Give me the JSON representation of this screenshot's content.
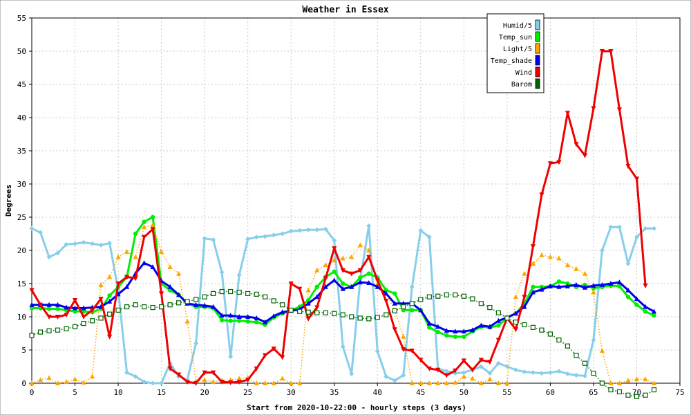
{
  "chart_data": {
    "type": "line",
    "title": "Weather in Essex",
    "xlabel": "Start from 2020-10-22:00 - hourly steps (3 days)",
    "ylabel": "Degrees",
    "xlim": [
      0,
      75
    ],
    "ylim": [
      0,
      55
    ],
    "xticks": [
      0,
      5,
      10,
      15,
      20,
      25,
      30,
      35,
      40,
      45,
      50,
      55,
      60,
      65,
      70,
      75
    ],
    "yticks": [
      0,
      5,
      10,
      15,
      20,
      25,
      30,
      35,
      40,
      45,
      50,
      55
    ],
    "grid": true,
    "legend_position": "top-right",
    "series": [
      {
        "name": "Humid/5",
        "color": "#87ceeb",
        "style": "solid",
        "marker": "diamond",
        "values": [
          23.3,
          22.7,
          19.0,
          19.6,
          20.9,
          21.0,
          21.2,
          21.0,
          20.8,
          21.1,
          14.0,
          1.6,
          1.0,
          0.2,
          0.0,
          0.0,
          3.0,
          1.0,
          0.5,
          6.0,
          21.8,
          21.6,
          16.7,
          4.0,
          16.3,
          21.7,
          22.0,
          22.1,
          22.3,
          22.5,
          22.9,
          23.0,
          23.1,
          23.1,
          23.2,
          21.5,
          5.5,
          1.4,
          15.6,
          23.7,
          4.8,
          1.0,
          0.4,
          1.2,
          14.5,
          23.0,
          22.0,
          2.2,
          1.8,
          1.5,
          1.6,
          2.0,
          2.5,
          1.5,
          3.0,
          2.5,
          2.0,
          1.7,
          1.6,
          1.5,
          1.6,
          1.8,
          1.4,
          1.2,
          1.1,
          6.5,
          20.0,
          23.5,
          23.5,
          18.0,
          22.0,
          23.3,
          23.3
        ]
      },
      {
        "name": "Temp_sun",
        "color": "#00ee00",
        "style": "solid",
        "marker": "circle",
        "values": [
          11.3,
          11.3,
          11.2,
          11.2,
          11.0,
          10.8,
          10.8,
          10.7,
          11.2,
          13.2,
          14.5,
          16.0,
          22.5,
          24.3,
          25.0,
          15.0,
          14.0,
          13.3,
          12.0,
          11.5,
          11.5,
          11.3,
          9.5,
          9.4,
          9.4,
          9.3,
          9.2,
          8.8,
          9.9,
          10.5,
          11.0,
          11.5,
          12.5,
          14.5,
          16.0,
          16.8,
          15.0,
          14.5,
          15.9,
          16.5,
          15.9,
          14.0,
          13.5,
          11.0,
          11.0,
          11.0,
          8.4,
          7.7,
          7.2,
          7.0,
          7.0,
          7.8,
          8.5,
          8.4,
          8.7,
          9.8,
          10.5,
          12.0,
          14.5,
          14.5,
          14.6,
          15.3,
          15.0,
          14.5,
          14.8,
          14.3,
          14.5,
          14.7,
          14.6,
          13.0,
          11.8,
          10.8,
          10.2
        ]
      },
      {
        "name": "Light/5",
        "color": "#ffa500",
        "style": "dotted",
        "marker": "triangle-up",
        "values": [
          0.0,
          0.5,
          0.8,
          0.0,
          0.2,
          0.6,
          0.1,
          1.0,
          14.8,
          16.0,
          19.0,
          19.8,
          19.0,
          23.5,
          23.8,
          19.8,
          17.5,
          16.5,
          9.3,
          0.3,
          0.5,
          0.2,
          0.4,
          0.5,
          0.7,
          0.8,
          0.0,
          0.0,
          0.0,
          0.7,
          0.0,
          0.0,
          14.0,
          17.0,
          17.8,
          18.5,
          18.8,
          19.0,
          20.8,
          20.0,
          15.0,
          13.5,
          11.0,
          7.0,
          0.0,
          0.0,
          0.0,
          0.0,
          0.0,
          0.1,
          1.0,
          0.7,
          0.0,
          0.6,
          0.0,
          0.0,
          13.0,
          16.5,
          18.0,
          19.3,
          19.0,
          18.8,
          17.8,
          17.2,
          16.5,
          13.7,
          4.9,
          0.0,
          0.0,
          0.4,
          0.6,
          0.6,
          0.0
        ]
      },
      {
        "name": "Temp_shade",
        "color": "#0000ee",
        "style": "solid",
        "marker": "triangle-up",
        "values": [
          11.8,
          11.8,
          11.8,
          11.8,
          11.4,
          11.3,
          11.3,
          11.4,
          11.5,
          12.3,
          13.4,
          14.5,
          16.5,
          18.1,
          17.5,
          15.4,
          14.5,
          13.3,
          12.0,
          11.8,
          11.7,
          11.5,
          10.2,
          10.2,
          10.0,
          10.0,
          9.8,
          9.2,
          10.1,
          10.7,
          10.9,
          11.1,
          12.0,
          13.0,
          14.5,
          15.5,
          14.2,
          14.5,
          15.2,
          15.1,
          14.5,
          13.5,
          12.0,
          12.0,
          12.0,
          11.0,
          9.0,
          8.5,
          7.9,
          7.8,
          7.8,
          8.0,
          8.7,
          8.5,
          9.4,
          9.9,
          10.5,
          11.5,
          13.7,
          14.1,
          14.6,
          14.5,
          14.6,
          14.8,
          14.4,
          14.7,
          14.8,
          15.0,
          15.2,
          14.0,
          12.7,
          11.5,
          10.8
        ]
      },
      {
        "name": "Wind",
        "color": "#ee0000",
        "style": "solid",
        "marker": "triangle-down",
        "values": [
          14.0,
          11.8,
          10.0,
          10.0,
          10.3,
          12.5,
          10.0,
          11.0,
          12.7,
          7.0,
          15.0,
          16.0,
          15.8,
          22.0,
          23.2,
          13.5,
          2.2,
          1.3,
          0.2,
          0.0,
          1.6,
          1.6,
          0.2,
          0.1,
          0.2,
          0.5,
          2.2,
          4.2,
          5.2,
          3.9,
          15.0,
          14.2,
          9.7,
          11.4,
          15.8,
          20.3,
          17.0,
          16.5,
          17.0,
          19.0,
          15.5,
          12.4,
          8.1,
          5.1,
          4.9,
          3.5,
          2.2,
          2.0,
          1.2,
          1.9,
          3.4,
          2.0,
          3.5,
          3.2,
          6.5,
          9.8,
          8.1,
          13.0,
          20.6,
          28.4,
          33.1,
          33.3,
          40.7,
          36.0,
          34.3,
          41.4,
          50.0,
          50.0,
          41.2,
          32.7,
          30.8,
          14.7
        ]
      },
      {
        "name": "Barom",
        "color": "#006400",
        "style": "dotted",
        "marker": "square-open",
        "values": [
          7.2,
          7.7,
          7.9,
          8.0,
          8.2,
          8.5,
          9.0,
          9.4,
          9.8,
          10.4,
          11.0,
          11.5,
          11.8,
          11.5,
          11.4,
          11.5,
          11.8,
          12.1,
          12.3,
          12.6,
          13.0,
          13.5,
          13.8,
          13.8,
          13.7,
          13.5,
          13.4,
          13.0,
          12.4,
          11.8,
          11.0,
          10.8,
          10.7,
          10.6,
          10.6,
          10.5,
          10.3,
          10.0,
          9.8,
          9.7,
          9.9,
          10.3,
          10.9,
          11.5,
          12.0,
          12.6,
          13.0,
          13.1,
          13.3,
          13.3,
          13.1,
          12.7,
          12.0,
          11.4,
          10.6,
          9.8,
          9.2,
          8.8,
          8.4,
          8.0,
          7.4,
          6.5,
          5.6,
          4.2,
          3.0,
          1.5,
          0.0,
          -1.0,
          -1.3,
          -1.8,
          -2.0,
          -1.8,
          -1.0
        ]
      }
    ]
  }
}
